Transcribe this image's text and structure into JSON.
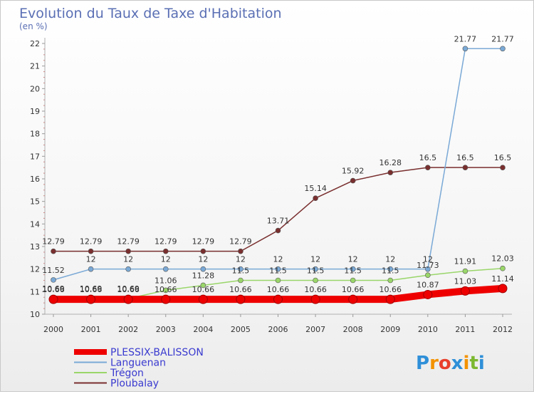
{
  "chart_data": {
    "type": "line",
    "title": "Evolution du Taux de Taxe d'Habitation",
    "subtitle": "(en %)",
    "x": [
      "2000",
      "2001",
      "2002",
      "2003",
      "2004",
      "2005",
      "2006",
      "2007",
      "2008",
      "2009",
      "2010",
      "2011",
      "2012"
    ],
    "ylim": [
      10,
      22
    ],
    "yticks": [
      "10",
      "11",
      "12",
      "13",
      "14",
      "15",
      "16",
      "17",
      "18",
      "19",
      "20",
      "21",
      "22"
    ],
    "grid": false,
    "legend_position": "bottom-left",
    "series": [
      {
        "name": "PLESSIX-BALISSON",
        "color": "#ee0000",
        "values": [
          10.66,
          10.66,
          10.66,
          10.66,
          10.66,
          10.66,
          10.66,
          10.66,
          10.66,
          10.66,
          10.87,
          11.03,
          11.14
        ],
        "labels": [
          "10.66",
          "10.66",
          "10.66",
          "10.66",
          "10.66",
          "10.66",
          "10.66",
          "10.66",
          "10.66",
          "10.66",
          "10.87",
          "11.03",
          "11.14"
        ]
      },
      {
        "name": "Languenan",
        "color": "#7aa9d6",
        "values": [
          11.52,
          12,
          12,
          12,
          12,
          12,
          12,
          12,
          12,
          12,
          12,
          21.77,
          21.77
        ],
        "labels": [
          "11.52",
          "12",
          "12",
          "12",
          "12",
          "12",
          "12",
          "12",
          "12",
          "12",
          "12",
          "21.77",
          "21.77"
        ]
      },
      {
        "name": "Trégon",
        "color": "#9ad66a",
        "values": [
          10.69,
          10.69,
          10.69,
          11.06,
          11.28,
          11.5,
          11.5,
          11.5,
          11.5,
          11.5,
          11.73,
          11.91,
          12.03
        ],
        "labels": [
          "10.69",
          "10.69",
          "10.69",
          "11.06",
          "11.28",
          "11.5",
          "11.5",
          "11.5",
          "11.5",
          "11.5",
          "11.73",
          "11.91",
          "12.03"
        ]
      },
      {
        "name": "Ploubalay",
        "color": "#7a2f2f",
        "values": [
          12.79,
          12.79,
          12.79,
          12.79,
          12.79,
          12.79,
          13.71,
          15.14,
          15.92,
          16.28,
          16.5,
          16.5,
          16.5
        ],
        "labels": [
          "12.79",
          "12.79",
          "12.79",
          "12.79",
          "12.79",
          "12.79",
          "13.71",
          "15.14",
          "15.92",
          "16.28",
          "16.5",
          "16.5",
          "16.5"
        ]
      }
    ]
  },
  "brand": {
    "name": "Proxiti",
    "letters": [
      "P",
      "r",
      "o",
      "x",
      "i",
      "t",
      "i"
    ],
    "colors": [
      "#2f8fd8",
      "#f39200",
      "#e83e2b",
      "#2f8fd8",
      "#f39200",
      "#7cb82f",
      "#2f8fd8"
    ]
  }
}
